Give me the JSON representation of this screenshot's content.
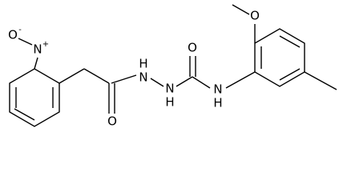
{
  "atoms": [
    {
      "label": "O",
      "charge": "-"
    },
    {
      "label": "N",
      "charge": "+"
    },
    {
      "label": "O"
    },
    {
      "label": "H"
    },
    {
      "label": "N"
    },
    {
      "label": "N"
    },
    {
      "label": "H"
    },
    {
      "label": "O"
    },
    {
      "label": "N"
    },
    {
      "label": "H"
    },
    {
      "label": "O"
    }
  ]
}
